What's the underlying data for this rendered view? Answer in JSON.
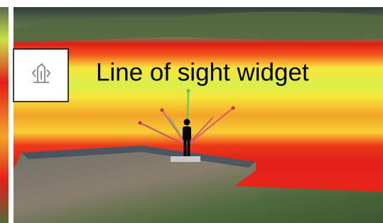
{
  "widget": {
    "label": "Line of sight widget"
  }
}
